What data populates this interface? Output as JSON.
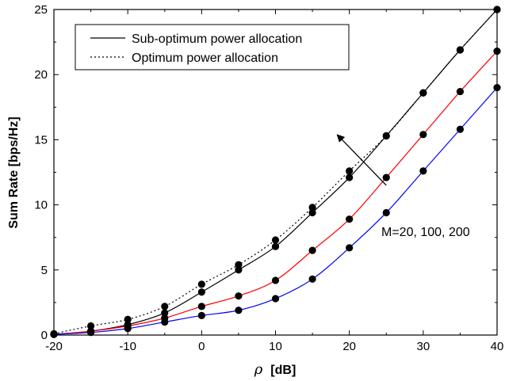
{
  "chart_data": {
    "type": "line",
    "xlabel_symbol": "ρ",
    "xlabel_unit": "[dB]",
    "ylabel": "Sum Rate [bps/Hz]",
    "xlim": [
      -20,
      40
    ],
    "ylim": [
      0,
      25
    ],
    "xticks": [
      -20,
      -10,
      0,
      10,
      20,
      30,
      40
    ],
    "xtick_labels": [
      "-20",
      "-10",
      "0",
      "10",
      "20",
      "30",
      "40"
    ],
    "yticks": [
      0,
      5,
      10,
      15,
      20,
      25
    ],
    "ytick_labels": [
      "0",
      "5",
      "10",
      "15",
      "20",
      "25"
    ],
    "grid": false,
    "legend_position": "top-left",
    "legend": [
      {
        "label": "Sub-optimum power allocation",
        "style": "solid"
      },
      {
        "label": "Optimum power allocation",
        "style": "dotted"
      }
    ],
    "annotation": {
      "text": "M=20, 100, 200",
      "arrow_from": [
        25,
        11.5
      ],
      "arrow_to": [
        18.5,
        15.3
      ]
    },
    "x": [
      -20,
      -15,
      -10,
      -5,
      0,
      5,
      10,
      15,
      20,
      25,
      30,
      35,
      40
    ],
    "series": [
      {
        "color": "#000000",
        "style": "solid",
        "values": [
          0.05,
          0.3,
          0.8,
          1.7,
          3.3,
          5.0,
          6.8,
          9.4,
          12.1,
          15.3,
          18.6,
          21.9,
          25.0
        ]
      },
      {
        "color": "#000000",
        "style": "dotted",
        "values": [
          0.1,
          0.7,
          1.2,
          2.2,
          3.9,
          5.4,
          7.3,
          9.8,
          12.6,
          15.3,
          18.6,
          21.9,
          25.0
        ]
      },
      {
        "color": "#ff0000",
        "style": "solid",
        "values": [
          0.05,
          0.3,
          0.7,
          1.3,
          2.2,
          3.0,
          4.2,
          6.5,
          8.9,
          12.1,
          15.4,
          18.7,
          21.8
        ]
      },
      {
        "color": "#0000ff",
        "style": "solid",
        "values": [
          0.05,
          0.2,
          0.5,
          1.0,
          1.5,
          1.9,
          2.8,
          4.3,
          6.7,
          9.4,
          12.6,
          15.8,
          19.0
        ]
      }
    ]
  }
}
